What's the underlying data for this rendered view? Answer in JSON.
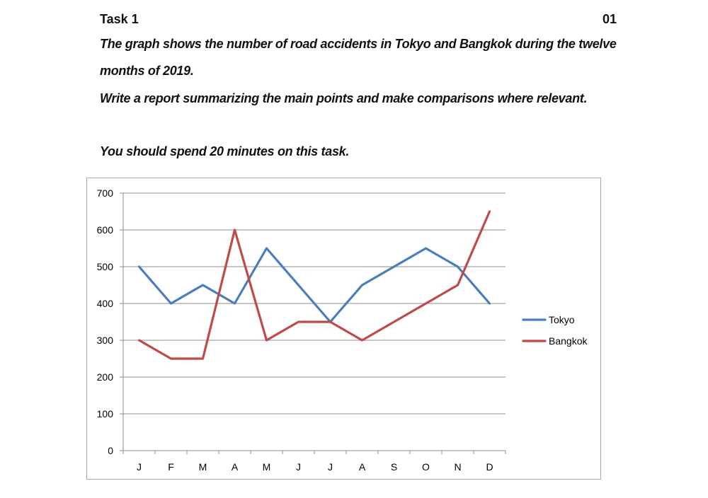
{
  "task": {
    "title": "Task 1",
    "page_number": "01",
    "line1": "The graph shows the number of road accidents in Tokyo and Bangkok during the twelve",
    "line2": "months of 2019.",
    "line3": "Write a report summarizing the main points and make comparisons where relevant.",
    "line4": "You should spend 20 minutes on this task."
  },
  "chart_data": {
    "type": "line",
    "categories": [
      "J",
      "F",
      "M",
      "A",
      "M",
      "J",
      "J",
      "A",
      "S",
      "O",
      "N",
      "D"
    ],
    "series": [
      {
        "name": "Tokyo",
        "color": "#4a7ebb",
        "values": [
          500,
          400,
          450,
          400,
          550,
          450,
          350,
          450,
          500,
          550,
          500,
          400
        ]
      },
      {
        "name": "Bangkok",
        "color": "#be4b48",
        "values": [
          300,
          250,
          250,
          600,
          300,
          350,
          350,
          300,
          350,
          400,
          450,
          650
        ]
      }
    ],
    "ylim": [
      0,
      700
    ],
    "yticks": [
      0,
      100,
      200,
      300,
      400,
      500,
      600,
      700
    ],
    "grid": "horizontal",
    "legend_position": "right"
  }
}
